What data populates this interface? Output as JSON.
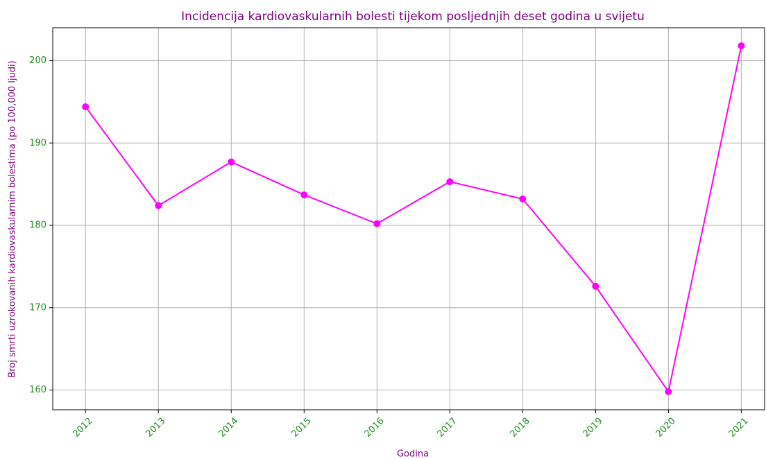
{
  "chart_data": {
    "type": "line",
    "title": "Incidencija kardiovaskularnih bolesti tijekom posljednjih deset godina u svijetu",
    "x_label": "Godina",
    "y_label": "Broj smrti uzrokovanih kardiovaskularnim bolestima (po 100,000 ljudi)",
    "x": [
      2012,
      2013,
      2014,
      2015,
      2016,
      2017,
      2018,
      2019,
      2020,
      2021
    ],
    "series": [
      {
        "name": "Incidencija",
        "color": "#ff00ff",
        "values": [
          194.4,
          182.4,
          187.7,
          183.7,
          180.2,
          185.3,
          183.2,
          172.6,
          159.8,
          201.8
        ]
      }
    ],
    "xlim": [
      2011.55,
      2021.32
    ],
    "xticks": [
      2012,
      2013,
      2014,
      2015,
      2016,
      2017,
      2018,
      2019,
      2020,
      2021
    ],
    "ylim": [
      157.6,
      204.0
    ],
    "yticks": [
      160,
      170,
      180,
      190,
      200
    ],
    "grid": true,
    "title_color": "#800080",
    "tick_label_color": "#228b22"
  }
}
